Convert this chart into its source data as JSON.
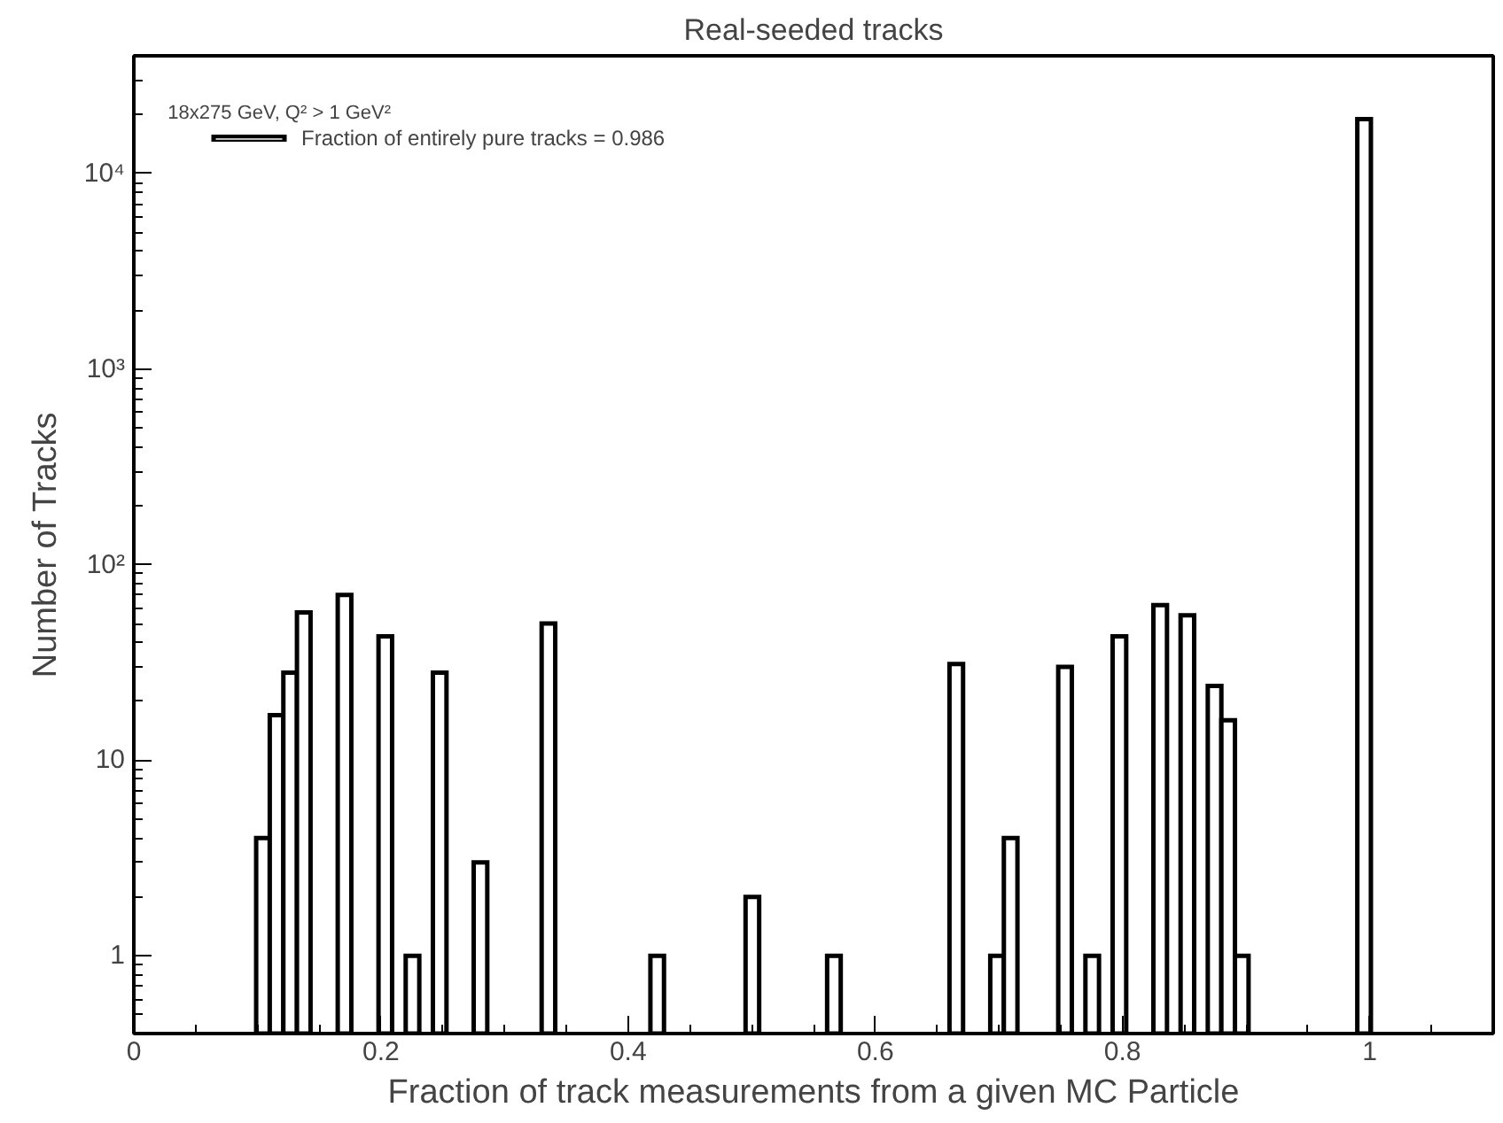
{
  "chart_data": {
    "type": "histogram",
    "title": "Real-seeded tracks",
    "xlabel": "Fraction of track measurements from a given MC Particle",
    "ylabel": "Number of Tracks",
    "annotations": [
      "18x275 GeV, Q² > 1 GeV²"
    ],
    "bins": [
      0,
      0.011,
      0.022,
      0.033,
      0.044,
      0.055,
      0.066,
      0.077,
      0.088,
      0.099,
      0.11,
      0.121,
      0.132,
      0.143,
      0.154,
      0.165,
      0.176,
      0.187,
      0.198,
      0.209,
      0.22,
      0.231,
      0.242,
      0.253,
      0.264,
      0.275,
      0.286,
      0.297,
      0.308,
      0.319,
      0.33,
      0.341,
      0.352,
      0.363,
      0.374,
      0.385,
      0.396,
      0.407,
      0.418,
      0.429,
      0.44,
      0.451,
      0.462,
      0.473,
      0.484,
      0.495,
      0.506,
      0.517,
      0.528,
      0.539,
      0.55,
      0.561,
      0.572,
      0.583,
      0.594,
      0.605,
      0.616,
      0.627,
      0.638,
      0.649,
      0.66,
      0.671,
      0.682,
      0.693,
      0.704,
      0.715,
      0.726,
      0.737,
      0.748,
      0.759,
      0.77,
      0.781,
      0.792,
      0.803,
      0.814,
      0.825,
      0.836,
      0.847,
      0.858,
      0.869,
      0.88,
      0.891,
      0.902,
      0.913,
      0.924,
      0.935,
      0.946,
      0.957,
      0.968,
      0.979,
      0.99,
      1.001,
      1.012,
      1.023,
      1.034,
      1.045,
      1.056,
      1.067,
      1.078,
      1.089,
      1.1
    ],
    "series": [
      {
        "name": "Fraction of entirely pure tracks = 0.986",
        "color": "#000000",
        "values": [
          null,
          null,
          null,
          null,
          null,
          null,
          null,
          null,
          null,
          4,
          17,
          28,
          57,
          null,
          null,
          70,
          null,
          null,
          43,
          null,
          1,
          null,
          28,
          null,
          null,
          3,
          null,
          null,
          null,
          null,
          50,
          null,
          null,
          null,
          null,
          null,
          null,
          null,
          1,
          null,
          null,
          null,
          null,
          null,
          null,
          2,
          null,
          null,
          null,
          null,
          null,
          1,
          null,
          null,
          null,
          null,
          null,
          null,
          null,
          null,
          31,
          null,
          null,
          1,
          4,
          null,
          null,
          null,
          30,
          null,
          1,
          null,
          43,
          null,
          null,
          62,
          null,
          55,
          null,
          24,
          16,
          1,
          null,
          null,
          null,
          null,
          null,
          null,
          null,
          null,
          19000,
          null,
          null,
          null,
          null,
          null,
          null,
          null,
          null,
          null
        ]
      }
    ],
    "log": "y",
    "xlim": [
      0,
      1.1
    ],
    "ylim": [
      0.4,
      40000
    ],
    "xticks": [
      0,
      0.2,
      0.4,
      0.6,
      0.8,
      1
    ],
    "yticks": [
      1,
      10,
      {
        "value": 100,
        "label": "10²"
      },
      {
        "value": 1000,
        "label": "10³"
      },
      {
        "value": 10000,
        "label": "10⁴"
      }
    ],
    "grid": false,
    "legend": "top left"
  }
}
